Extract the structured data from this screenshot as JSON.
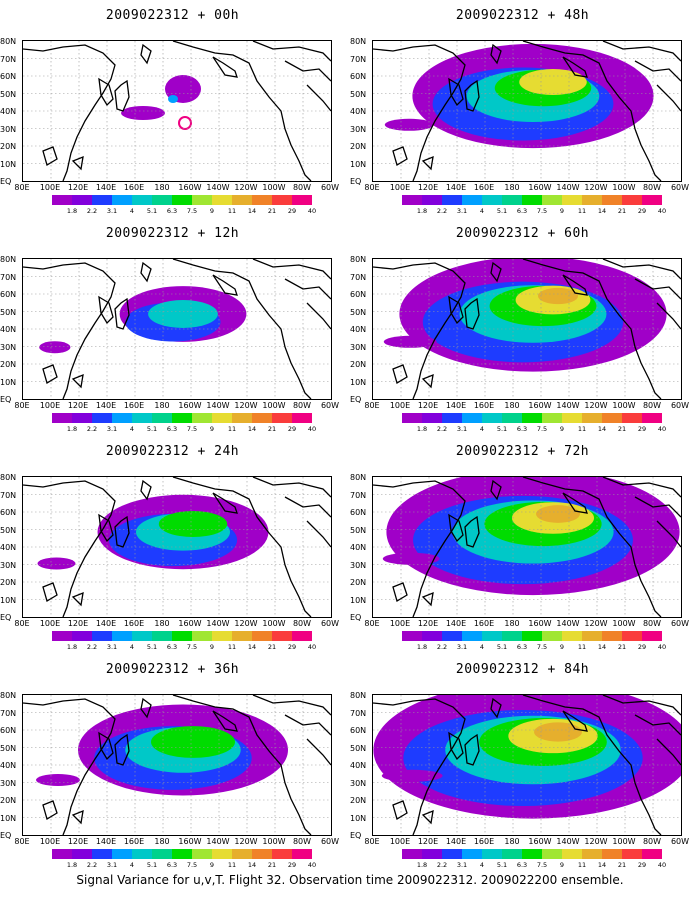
{
  "panels": [
    {
      "title": "2009022312 + 00h",
      "intensity": 0.05
    },
    {
      "title": "2009022312 + 12h",
      "intensity": 0.18
    },
    {
      "title": "2009022312 + 24h",
      "intensity": 0.35
    },
    {
      "title": "2009022312 + 36h",
      "intensity": 0.5
    },
    {
      "title": "2009022312 + 48h",
      "intensity": 0.62
    },
    {
      "title": "2009022312 + 60h",
      "intensity": 0.72
    },
    {
      "title": "2009022312 + 72h",
      "intensity": 0.82
    },
    {
      "title": "2009022312 + 84h",
      "intensity": 0.92
    }
  ],
  "lat_labels": [
    "80N",
    "70N",
    "60N",
    "50N",
    "40N",
    "30N",
    "20N",
    "10N",
    "EQ"
  ],
  "lon_labels": [
    "80E",
    "100E",
    "120E",
    "140E",
    "160E",
    "180",
    "160W",
    "140W",
    "120W",
    "100W",
    "80W",
    "60W"
  ],
  "colorbar": {
    "labels": [
      "1.8",
      "2.2",
      "3.1",
      "4",
      "5.1",
      "6.3",
      "7.5",
      "9",
      "11",
      "14",
      "21",
      "29",
      "40"
    ],
    "colors": [
      "#a000c8",
      "#8200dc",
      "#1e3cff",
      "#00a0ff",
      "#00c8c8",
      "#00d28c",
      "#00dc00",
      "#a0e632",
      "#e6dc32",
      "#e6af2d",
      "#f08228",
      "#fa3c3c",
      "#f00082"
    ]
  },
  "caption": "Signal Variance for u,v,T. Flight 32. Observation time 2009022312. 2009022200 ensemble."
}
